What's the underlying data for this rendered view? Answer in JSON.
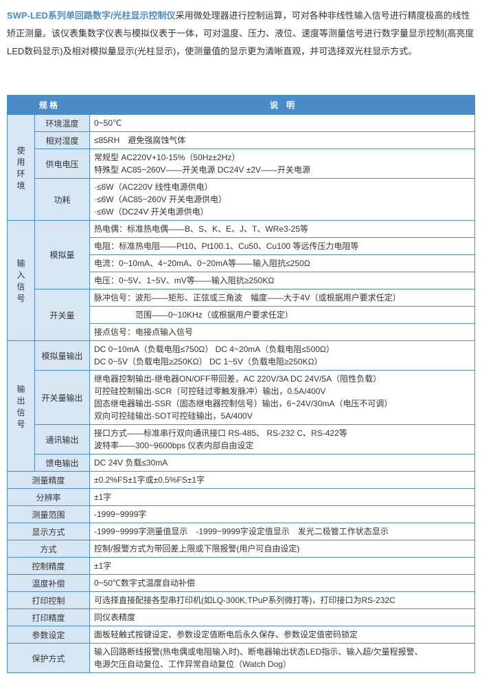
{
  "intro": {
    "highlight": "SWP-LED系列单回路数字/光柱显示控制仪",
    "rest": "采用微处理器进行控制运算，可对各种非线性输入信号进行精度极高的线性矫正测量。该仪表集数字仪表与模拟仪表于一体，可对温度、压力、液位、速度等测量信号进行数字量显示控制(高亮度LED数码显示)及相对模拟量显示(光柱显示)，使测量值的显示更为清晰直观，并可选择双光柱显示方式。"
  },
  "headers": {
    "spec": "规 格",
    "desc": "说　明"
  },
  "groups": [
    {
      "cat": "使用环境",
      "rows": [
        {
          "sub": "环境温度",
          "val": "0~50℃"
        },
        {
          "sub": "相对湿度",
          "val": "≤85RH　避免强腐蚀气体"
        },
        {
          "sub": "供电电压",
          "val": "常规型 AC220V+10-15%（50Hz±2Hz）\n特殊型 AC85~260V——开关电源 DC24V ±2V——开关电源"
        },
        {
          "sub": "功耗",
          "val": "·≤6W（AC220V 线性电源供电）\n·≤6W（AC85~260V 开关电源供电）\n·≤6W（DC24V 开关电源供电）"
        }
      ]
    },
    {
      "cat": "输入信号",
      "rows": [
        {
          "sub": "模拟量",
          "val": "热电偶：标准热电偶——B、S、K、E、J、T、WRe3-25等\n电阻：标准热电阻——Pt10、Pt100.1、Cu50、Cu100 等远传压力电阻等\n电流：0~10mA、4~20mA、0~20mA等——输入阻抗≤250Ω\n电压：0~5V、1~5V、mV等——输入阻抗≥250KΩ"
        },
        {
          "sub": "开关量",
          "val": "脉冲信号：波形——矩形、正弦或三角波　幅度——大于4V（或根据用户要求任定）\n　　　　　范围——0~10KHz（或根据用户要求任定）\n接点信号：电接点输入信号"
        }
      ]
    },
    {
      "cat": "输出信号",
      "rows": [
        {
          "sub": "模拟量输出",
          "val": "DC 0~10mA（负载电阻≤750Ω） DC 4~20mA（负载电阻≤500Ω）\nDC 0~5V（负载电阻≥250KΩ） DC 1~5V（负载电阻≥250KΩ）"
        },
        {
          "sub": "开关量输出",
          "val": "继电器控制输出-继电器ON/OFF带回差，AC 220V/3A DC 24V/5A（阻性负载）\n可控硅控制输出-SCR（可控硅过零触发脉冲）输出，0.5A/400V\n固态继电器输出-SSR（固态继电器控制信号）输出，6~24V/30mA（电压不可调）\n双向可控硅输出-SOT可控硅输出，5A/400V"
        },
        {
          "sub": "通讯输出",
          "val": "接口方式——标准串行双向通讯接口 RS-485、 RS-232 C、RS-422等\n波特率——300~9600bps 仪表内部自由设定"
        },
        {
          "sub": "馈电输出",
          "val": "DC 24V 负载≤30mA"
        }
      ]
    }
  ],
  "flat": [
    {
      "sub": "测量精度",
      "val": "±0.2%FS±1字或±0.5%FS±1字"
    },
    {
      "sub": "分辨率",
      "val": "±1字"
    },
    {
      "sub": "测量范围",
      "val": "-1999~9999字"
    },
    {
      "sub": "显示方式",
      "val": "-1999~9999字测量值显示　-1999~9999字设定值显示　发光二极管工作状态显示"
    },
    {
      "sub": "方式",
      "val": "控制/报警方式为带回差上限或下限报警(用户可自由设定)"
    },
    {
      "sub": "控制精度",
      "val": "±1字"
    },
    {
      "sub": "温度补偿",
      "val": "0~50℃数字式温度自动补偿"
    },
    {
      "sub": "打印控制",
      "val": "可选择直接配接各型串打印机(如LQ-300K,TPuP系列微打等)，打印接口为RS-232C"
    },
    {
      "sub": "打印精度",
      "val": "同仪表精度"
    },
    {
      "sub": "参数设定",
      "val": "面板轻触式按键设定、参数设定值断电后永久保存、参数设定值密码锁定"
    },
    {
      "sub": "保护方式",
      "val": "输入回路断线报警(热电偶或电阻输入时)、断电器输出状态LED指示、输入超/欠量程报警、\n电源欠压自动复位、工作异常自动复位（Watch Dog）"
    }
  ]
}
